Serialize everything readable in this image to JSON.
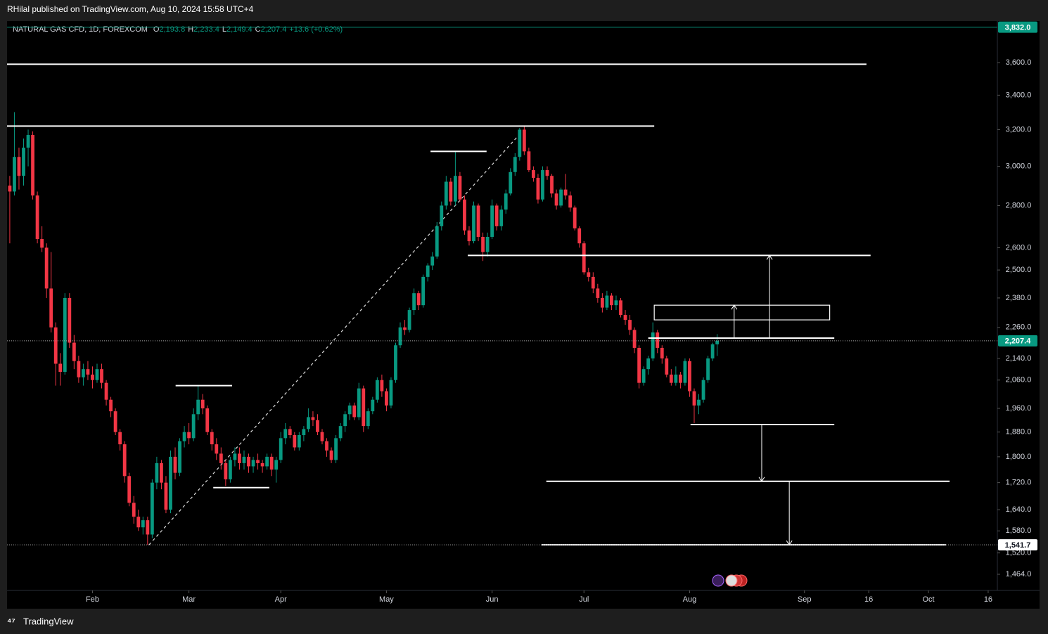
{
  "header": {
    "publisher": "RHilal published on TradingView.com, Aug 10, 2024 15:58 UTC+4",
    "brand": "TradingView"
  },
  "chart_data": {
    "type": "candlestick",
    "legend": {
      "symbol": "NATURAL GAS CFD, 1D, FOREXCOM",
      "fields": [
        {
          "key": "O",
          "value": "2,193.8"
        },
        {
          "key": "H",
          "value": "2,233.4"
        },
        {
          "key": "L",
          "value": "2,149.4"
        },
        {
          "key": "C",
          "value": "2,207.4"
        }
      ],
      "change": "+13.6 (+0.62%)"
    },
    "up_color": "#089981",
    "down_color": "#f23645",
    "log_scale": true,
    "xlim": [
      -0.6,
      215
    ],
    "ylim": [
      1423,
      3873
    ],
    "xticks": [
      {
        "value": 18,
        "label": "Feb"
      },
      {
        "value": 39,
        "label": "Mar"
      },
      {
        "value": 59,
        "label": "Apr"
      },
      {
        "value": 82,
        "label": "May"
      },
      {
        "value": 105,
        "label": "Jun"
      },
      {
        "value": 125,
        "label": "Jul"
      },
      {
        "value": 148,
        "label": "Aug"
      },
      {
        "value": 173,
        "label": "Sep"
      },
      {
        "value": 187,
        "label": "16"
      },
      {
        "value": 200,
        "label": "Oct"
      },
      {
        "value": 213,
        "label": "16"
      }
    ],
    "yticks": [
      {
        "value": 3600,
        "label": "3,600.0"
      },
      {
        "value": 3400,
        "label": "3,400.0"
      },
      {
        "value": 3200,
        "label": "3,200.0"
      },
      {
        "value": 3000,
        "label": "3,000.0"
      },
      {
        "value": 2800,
        "label": "2,800.0"
      },
      {
        "value": 2600,
        "label": "2,600.0"
      },
      {
        "value": 2500,
        "label": "2,500.0"
      },
      {
        "value": 2380,
        "label": "2,380.0"
      },
      {
        "value": 2260,
        "label": "2,260.0"
      },
      {
        "value": 2140,
        "label": "2,140.0"
      },
      {
        "value": 2060,
        "label": "2,060.0"
      },
      {
        "value": 1960,
        "label": "1,960.0"
      },
      {
        "value": 1880,
        "label": "1,880.0"
      },
      {
        "value": 1800,
        "label": "1,800.0"
      },
      {
        "value": 1720,
        "label": "1,720.0"
      },
      {
        "value": 1640,
        "label": "1,640.0"
      },
      {
        "value": 1580,
        "label": "1,580.0"
      },
      {
        "value": 1520,
        "label": "1,520.0"
      },
      {
        "value": 1464,
        "label": "1,464.0"
      }
    ],
    "price_labels": [
      {
        "value": 3832,
        "label": "3,832.0",
        "color": "#089981"
      },
      {
        "value": 2207.4,
        "label": "2,207.4",
        "color": "#089981"
      },
      {
        "value": 1541.7,
        "label": "1,541.7",
        "color": "#ffffff"
      }
    ],
    "levels": [
      {
        "from": -0.6,
        "to": 186.5,
        "price": 3590
      },
      {
        "from": -0.6,
        "to": 140.3,
        "price": 3220
      },
      {
        "from": 91.6,
        "to": 103.8,
        "price": 3080
      },
      {
        "from": 36.1,
        "to": 48.4,
        "price": 2040
      },
      {
        "from": 44.3,
        "to": 56.5,
        "price": 1705
      },
      {
        "from": 99.7,
        "to": 187.4,
        "price": 2565
      },
      {
        "from": 139,
        "to": 179.5,
        "price": 2218
      },
      {
        "from": 148.2,
        "to": 179.5,
        "price": 1905
      },
      {
        "from": 116.8,
        "to": 204.6,
        "price": 1724
      },
      {
        "from": 115.8,
        "to": 203.8,
        "price": 1541.7
      }
    ],
    "box": {
      "from": 140.3,
      "to": 178.5,
      "top": 2350,
      "bottom": 2290
    },
    "arrows": [
      {
        "at": 165.4,
        "from": 2218,
        "to": 2565
      },
      {
        "at": 157.7,
        "from": 2218,
        "to": 2350
      },
      {
        "at": 163.7,
        "from": 1905,
        "to": 1724
      },
      {
        "at": 169.7,
        "from": 1724,
        "to": 1541.7
      }
    ],
    "trend": {
      "from": [
        30.3,
        1541.7
      ],
      "to": [
        111.2,
        3180
      ]
    },
    "candles": [
      [
        2900,
        2950,
        2620,
        2870
      ],
      [
        2870,
        3300,
        2850,
        3050
      ],
      [
        3050,
        3100,
        2880,
        2950
      ],
      [
        2950,
        3150,
        2900,
        3100
      ],
      [
        3100,
        3200,
        3000,
        3170
      ],
      [
        3170,
        3190,
        2830,
        2850
      ],
      [
        2850,
        2870,
        2620,
        2640
      ],
      [
        2640,
        2700,
        2580,
        2600
      ],
      [
        2600,
        2620,
        2380,
        2420
      ],
      [
        2420,
        2580,
        2240,
        2260
      ],
      [
        2260,
        2280,
        2040,
        2120
      ],
      [
        2120,
        2160,
        2040,
        2090
      ],
      [
        2090,
        2400,
        2080,
        2380
      ],
      [
        2380,
        2400,
        2180,
        2200
      ],
      [
        2200,
        2230,
        2100,
        2130
      ],
      [
        2130,
        2150,
        2050,
        2070
      ],
      [
        2070,
        2120,
        2040,
        2100
      ],
      [
        2100,
        2130,
        2060,
        2080
      ],
      [
        2080,
        2110,
        2030,
        2060
      ],
      [
        2060,
        2120,
        2050,
        2100
      ],
      [
        2100,
        2120,
        2030,
        2050
      ],
      [
        2050,
        2060,
        1970,
        1990
      ],
      [
        1990,
        2000,
        1930,
        1950
      ],
      [
        1950,
        1960,
        1870,
        1880
      ],
      [
        1880,
        1890,
        1820,
        1840
      ],
      [
        1840,
        1850,
        1720,
        1740
      ],
      [
        1740,
        1750,
        1650,
        1660
      ],
      [
        1660,
        1680,
        1600,
        1620
      ],
      [
        1620,
        1640,
        1580,
        1590
      ],
      [
        1590,
        1620,
        1570,
        1610
      ],
      [
        1610,
        1620,
        1541.7,
        1570
      ],
      [
        1570,
        1730,
        1560,
        1720
      ],
      [
        1720,
        1800,
        1700,
        1780
      ],
      [
        1780,
        1790,
        1700,
        1720
      ],
      [
        1720,
        1740,
        1630,
        1640
      ],
      [
        1640,
        1820,
        1630,
        1800
      ],
      [
        1800,
        1830,
        1730,
        1750
      ],
      [
        1750,
        1860,
        1740,
        1850
      ],
      [
        1850,
        1900,
        1830,
        1880
      ],
      [
        1880,
        1910,
        1840,
        1860
      ],
      [
        1860,
        1960,
        1850,
        1940
      ],
      [
        1940,
        2040,
        1920,
        1990
      ],
      [
        1990,
        2010,
        1940,
        1960
      ],
      [
        1960,
        1970,
        1870,
        1880
      ],
      [
        1880,
        1890,
        1820,
        1840
      ],
      [
        1840,
        1860,
        1790,
        1810
      ],
      [
        1810,
        1830,
        1760,
        1780
      ],
      [
        1780,
        1790,
        1710,
        1730
      ],
      [
        1730,
        1800,
        1720,
        1790
      ],
      [
        1790,
        1830,
        1770,
        1810
      ],
      [
        1810,
        1830,
        1760,
        1780
      ],
      [
        1780,
        1820,
        1760,
        1800
      ],
      [
        1800,
        1810,
        1750,
        1770
      ],
      [
        1770,
        1800,
        1750,
        1790
      ],
      [
        1790,
        1810,
        1760,
        1780
      ],
      [
        1780,
        1790,
        1750,
        1770
      ],
      [
        1770,
        1810,
        1760,
        1800
      ],
      [
        1800,
        1810,
        1740,
        1760
      ],
      [
        1760,
        1800,
        1720,
        1790
      ],
      [
        1790,
        1880,
        1780,
        1860
      ],
      [
        1860,
        1910,
        1840,
        1890
      ],
      [
        1890,
        1900,
        1860,
        1870
      ],
      [
        1870,
        1880,
        1820,
        1830
      ],
      [
        1830,
        1880,
        1820,
        1870
      ],
      [
        1870,
        1900,
        1850,
        1890
      ],
      [
        1890,
        1960,
        1880,
        1930
      ],
      [
        1930,
        1950,
        1900,
        1920
      ],
      [
        1920,
        1940,
        1870,
        1880
      ],
      [
        1880,
        1890,
        1840,
        1850
      ],
      [
        1850,
        1860,
        1800,
        1820
      ],
      [
        1820,
        1830,
        1780,
        1790
      ],
      [
        1790,
        1870,
        1780,
        1860
      ],
      [
        1860,
        1910,
        1850,
        1900
      ],
      [
        1900,
        1950,
        1880,
        1940
      ],
      [
        1940,
        1980,
        1920,
        1970
      ],
      [
        1970,
        1980,
        1920,
        1930
      ],
      [
        1930,
        2050,
        1920,
        2030
      ],
      [
        2030,
        2040,
        1880,
        1900
      ],
      [
        1900,
        1960,
        1890,
        1950
      ],
      [
        1950,
        2000,
        1940,
        1990
      ],
      [
        1990,
        2070,
        1980,
        2060
      ],
      [
        2060,
        2080,
        2000,
        2020
      ],
      [
        2020,
        2030,
        1950,
        1970
      ],
      [
        1970,
        2070,
        1960,
        2060
      ],
      [
        2060,
        2200,
        2050,
        2190
      ],
      [
        2190,
        2280,
        2180,
        2260
      ],
      [
        2260,
        2290,
        2230,
        2250
      ],
      [
        2250,
        2340,
        2240,
        2330
      ],
      [
        2330,
        2420,
        2310,
        2400
      ],
      [
        2400,
        2410,
        2330,
        2350
      ],
      [
        2350,
        2480,
        2340,
        2470
      ],
      [
        2470,
        2530,
        2450,
        2520
      ],
      [
        2520,
        2580,
        2500,
        2560
      ],
      [
        2560,
        2720,
        2550,
        2700
      ],
      [
        2700,
        2820,
        2680,
        2800
      ],
      [
        2800,
        2950,
        2780,
        2920
      ],
      [
        2920,
        2940,
        2800,
        2820
      ],
      [
        2820,
        3080,
        2800,
        2950
      ],
      [
        2950,
        2970,
        2820,
        2830
      ],
      [
        2830,
        2850,
        2660,
        2680
      ],
      [
        2680,
        2700,
        2610,
        2630
      ],
      [
        2630,
        2820,
        2620,
        2800
      ],
      [
        2800,
        2810,
        2630,
        2650
      ],
      [
        2650,
        2670,
        2540,
        2580
      ],
      [
        2580,
        2670,
        2560,
        2650
      ],
      [
        2650,
        2830,
        2640,
        2800
      ],
      [
        2800,
        2810,
        2680,
        2700
      ],
      [
        2700,
        2800,
        2680,
        2780
      ],
      [
        2780,
        2880,
        2760,
        2860
      ],
      [
        2860,
        2990,
        2850,
        2970
      ],
      [
        2970,
        3070,
        2950,
        3050
      ],
      [
        3050,
        3210,
        3030,
        3200
      ],
      [
        3200,
        3220,
        3060,
        3080
      ],
      [
        3080,
        3100,
        2970,
        2980
      ],
      [
        2980,
        3000,
        2920,
        2940
      ],
      [
        2940,
        2960,
        2810,
        2830
      ],
      [
        2830,
        3000,
        2820,
        2980
      ],
      [
        2980,
        3000,
        2930,
        2950
      ],
      [
        2950,
        2960,
        2840,
        2860
      ],
      [
        2860,
        2880,
        2780,
        2800
      ],
      [
        2800,
        2890,
        2790,
        2880
      ],
      [
        2880,
        2960,
        2830,
        2850
      ],
      [
        2850,
        2870,
        2770,
        2790
      ],
      [
        2790,
        2800,
        2680,
        2690
      ],
      [
        2690,
        2700,
        2600,
        2620
      ],
      [
        2620,
        2630,
        2480,
        2490
      ],
      [
        2490,
        2510,
        2450,
        2470
      ],
      [
        2470,
        2490,
        2400,
        2420
      ],
      [
        2420,
        2440,
        2360,
        2380
      ],
      [
        2380,
        2400,
        2320,
        2340
      ],
      [
        2340,
        2410,
        2330,
        2390
      ],
      [
        2390,
        2400,
        2330,
        2350
      ],
      [
        2350,
        2390,
        2330,
        2370
      ],
      [
        2370,
        2380,
        2300,
        2310
      ],
      [
        2310,
        2330,
        2270,
        2290
      ],
      [
        2290,
        2310,
        2230,
        2250
      ],
      [
        2250,
        2260,
        2160,
        2180
      ],
      [
        2180,
        2190,
        2030,
        2050
      ],
      [
        2050,
        2110,
        2040,
        2100
      ],
      [
        2100,
        2150,
        2080,
        2140
      ],
      [
        2140,
        2280,
        2130,
        2240
      ],
      [
        2240,
        2250,
        2160,
        2180
      ],
      [
        2180,
        2190,
        2120,
        2140
      ],
      [
        2140,
        2150,
        2070,
        2080
      ],
      [
        2080,
        2100,
        2040,
        2050
      ],
      [
        2050,
        2110,
        2040,
        2080
      ],
      [
        2080,
        2090,
        2030,
        2050
      ],
      [
        2050,
        2140,
        2040,
        2130
      ],
      [
        2130,
        2140,
        2000,
        2020
      ],
      [
        2020,
        2030,
        1910,
        1970
      ],
      [
        1970,
        2010,
        1940,
        1990
      ],
      [
        1990,
        2070,
        1980,
        2060
      ],
      [
        2060,
        2150,
        2050,
        2140
      ],
      [
        2140,
        2200,
        2130,
        2193.8
      ],
      [
        2193.8,
        2233.4,
        2149.4,
        2207.4
      ]
    ]
  }
}
